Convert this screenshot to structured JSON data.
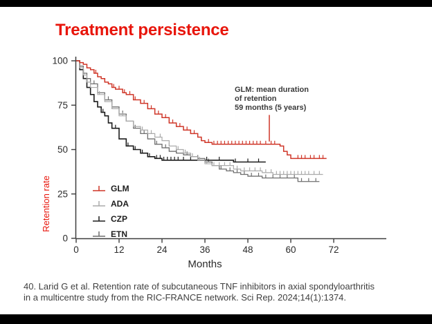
{
  "title": "Treatment persistence",
  "annotation": {
    "line1": "GLM: mean duration",
    "line2": "of retention",
    "line3": "59 months (5 years)",
    "marker_month": 54,
    "marker_top_value": 69.5,
    "marker_bottom_value": 54.5
  },
  "citation": {
    "line1": "40. Larid G et al. Retention rate of subcutaneous TNF inhibitors in axial spondyloarthritis",
    "line2": "in a multicentre study from the RIC-FRANCE network. Sci Rep. 2024;14(1):1374."
  },
  "colors": {
    "title_red": "#e8150b",
    "curve_red": "#cf3527",
    "ada_gray": "#aaaaaa",
    "czp_black": "#1b1b1b",
    "etn_gray": "#6e6e6e",
    "axis": "#3c3c3c",
    "tick_text": "#2b2b2b",
    "citation_text": "#3f3f3f"
  },
  "chart_data": {
    "type": "line",
    "subtype": "kaplan-meier-step",
    "title": "Treatment persistence",
    "xlabel": "Months",
    "ylabel": "Retention rate",
    "xlim": [
      0,
      78
    ],
    "ylim": [
      0,
      100
    ],
    "xticks": [
      0,
      12,
      24,
      36,
      48,
      60,
      72
    ],
    "yticks": [
      0,
      25,
      50,
      75,
      100
    ],
    "grid": false,
    "legend_position": "lower-left",
    "legend_entries": [
      "GLM",
      "ADA",
      "CZP",
      "ETN"
    ],
    "series": [
      {
        "name": "GLM",
        "color": "#cf3527",
        "width": 1.5,
        "points": [
          [
            0,
            100
          ],
          [
            1,
            99
          ],
          [
            2,
            98
          ],
          [
            3,
            96
          ],
          [
            4,
            95
          ],
          [
            5,
            93
          ],
          [
            6,
            91
          ],
          [
            7,
            90
          ],
          [
            8,
            88
          ],
          [
            9,
            87
          ],
          [
            10,
            85
          ],
          [
            11,
            84
          ],
          [
            13,
            82
          ],
          [
            14,
            81
          ],
          [
            16,
            78
          ],
          [
            18,
            76
          ],
          [
            20,
            73
          ],
          [
            22,
            70
          ],
          [
            24,
            68
          ],
          [
            26,
            65
          ],
          [
            28,
            63
          ],
          [
            30,
            61
          ],
          [
            32,
            59
          ],
          [
            34,
            57
          ],
          [
            35,
            55
          ],
          [
            36,
            54
          ],
          [
            38,
            53
          ],
          [
            48,
            53
          ],
          [
            56,
            53
          ],
          [
            57,
            52
          ],
          [
            58,
            49
          ],
          [
            59,
            47
          ],
          [
            60,
            45
          ],
          [
            70,
            45
          ]
        ],
        "censor_ticks": [
          5.5,
          8,
          10.5,
          12,
          13.5,
          15,
          16.5,
          19,
          21,
          23,
          25,
          26,
          27,
          29,
          31,
          33,
          35,
          37,
          38.5,
          39.5,
          40.5,
          41.5,
          42.5,
          43.5,
          44.5,
          45.5,
          46.5,
          47.5,
          48.5,
          49.5,
          50.5,
          51.5,
          53,
          54.5,
          55.5,
          62,
          63,
          64,
          65.5,
          66.5,
          68,
          69
        ]
      },
      {
        "name": "ADA",
        "color": "#aaaaaa",
        "width": 1.2,
        "points": [
          [
            0,
            100
          ],
          [
            1,
            96
          ],
          [
            2,
            92
          ],
          [
            3,
            88
          ],
          [
            4,
            85
          ],
          [
            6,
            81
          ],
          [
            8,
            77
          ],
          [
            10,
            73
          ],
          [
            12,
            69
          ],
          [
            14,
            66
          ],
          [
            16,
            63
          ],
          [
            18,
            61
          ],
          [
            20,
            59
          ],
          [
            22,
            57
          ],
          [
            24,
            55
          ],
          [
            26,
            52
          ],
          [
            28,
            50
          ],
          [
            30,
            48
          ],
          [
            32,
            46
          ],
          [
            34,
            44
          ],
          [
            36,
            42
          ],
          [
            38,
            41
          ],
          [
            42,
            41
          ],
          [
            44,
            39
          ],
          [
            46,
            38
          ],
          [
            50,
            38
          ],
          [
            52,
            37
          ],
          [
            55,
            36
          ],
          [
            69,
            36
          ]
        ],
        "censor_ticks": [
          6.5,
          10,
          13,
          16,
          18.5,
          21,
          23.5,
          26,
          28.5,
          30.5,
          32.5,
          34.5,
          36.5,
          38.5,
          40,
          41.5,
          43,
          45,
          47,
          48.5,
          50,
          51.5,
          53,
          54.5,
          56,
          57,
          58,
          59,
          60,
          61,
          62,
          63,
          64,
          65,
          66.5,
          68
        ]
      },
      {
        "name": "CZP",
        "color": "#1b1b1b",
        "width": 1.6,
        "points": [
          [
            0,
            100
          ],
          [
            1,
            95
          ],
          [
            2,
            90
          ],
          [
            3,
            85
          ],
          [
            4,
            81
          ],
          [
            5,
            77
          ],
          [
            6,
            74
          ],
          [
            7,
            71
          ],
          [
            8,
            69
          ],
          [
            9,
            65
          ],
          [
            10,
            62
          ],
          [
            12,
            56
          ],
          [
            14,
            52
          ],
          [
            16,
            50
          ],
          [
            18,
            48
          ],
          [
            20,
            46
          ],
          [
            22,
            45
          ],
          [
            24,
            44
          ],
          [
            36,
            44
          ],
          [
            44,
            43
          ],
          [
            53,
            43
          ]
        ],
        "censor_ticks": [
          7.5,
          11,
          14.5,
          16.5,
          18.5,
          20.5,
          22.5,
          23.5,
          24.5,
          25.5,
          26.5,
          27.5,
          28.5,
          30,
          32,
          34,
          36.5,
          40,
          44.5,
          48,
          51
        ]
      },
      {
        "name": "ETN",
        "color": "#6e6e6e",
        "width": 1.3,
        "points": [
          [
            0,
            100
          ],
          [
            1,
            97
          ],
          [
            2,
            93
          ],
          [
            3,
            90
          ],
          [
            4,
            87
          ],
          [
            6,
            82
          ],
          [
            8,
            78
          ],
          [
            10,
            74
          ],
          [
            12,
            70
          ],
          [
            14,
            66
          ],
          [
            16,
            62
          ],
          [
            18,
            59
          ],
          [
            20,
            56
          ],
          [
            22,
            53
          ],
          [
            24,
            51
          ],
          [
            26,
            49
          ],
          [
            28,
            48
          ],
          [
            30,
            47
          ],
          [
            32,
            46
          ],
          [
            34,
            45
          ],
          [
            36,
            43
          ],
          [
            38,
            41
          ],
          [
            40,
            39
          ],
          [
            42,
            38
          ],
          [
            44,
            37
          ],
          [
            46,
            36
          ],
          [
            48,
            35
          ],
          [
            52,
            34
          ],
          [
            62,
            32
          ],
          [
            68,
            32
          ]
        ],
        "censor_ticks": [
          5,
          9,
          13,
          16.5,
          19,
          22.5,
          25,
          28,
          31,
          34,
          37,
          40.5,
          43,
          45,
          47,
          49,
          51,
          53,
          55,
          57,
          59,
          61,
          63,
          65,
          67
        ]
      }
    ]
  }
}
